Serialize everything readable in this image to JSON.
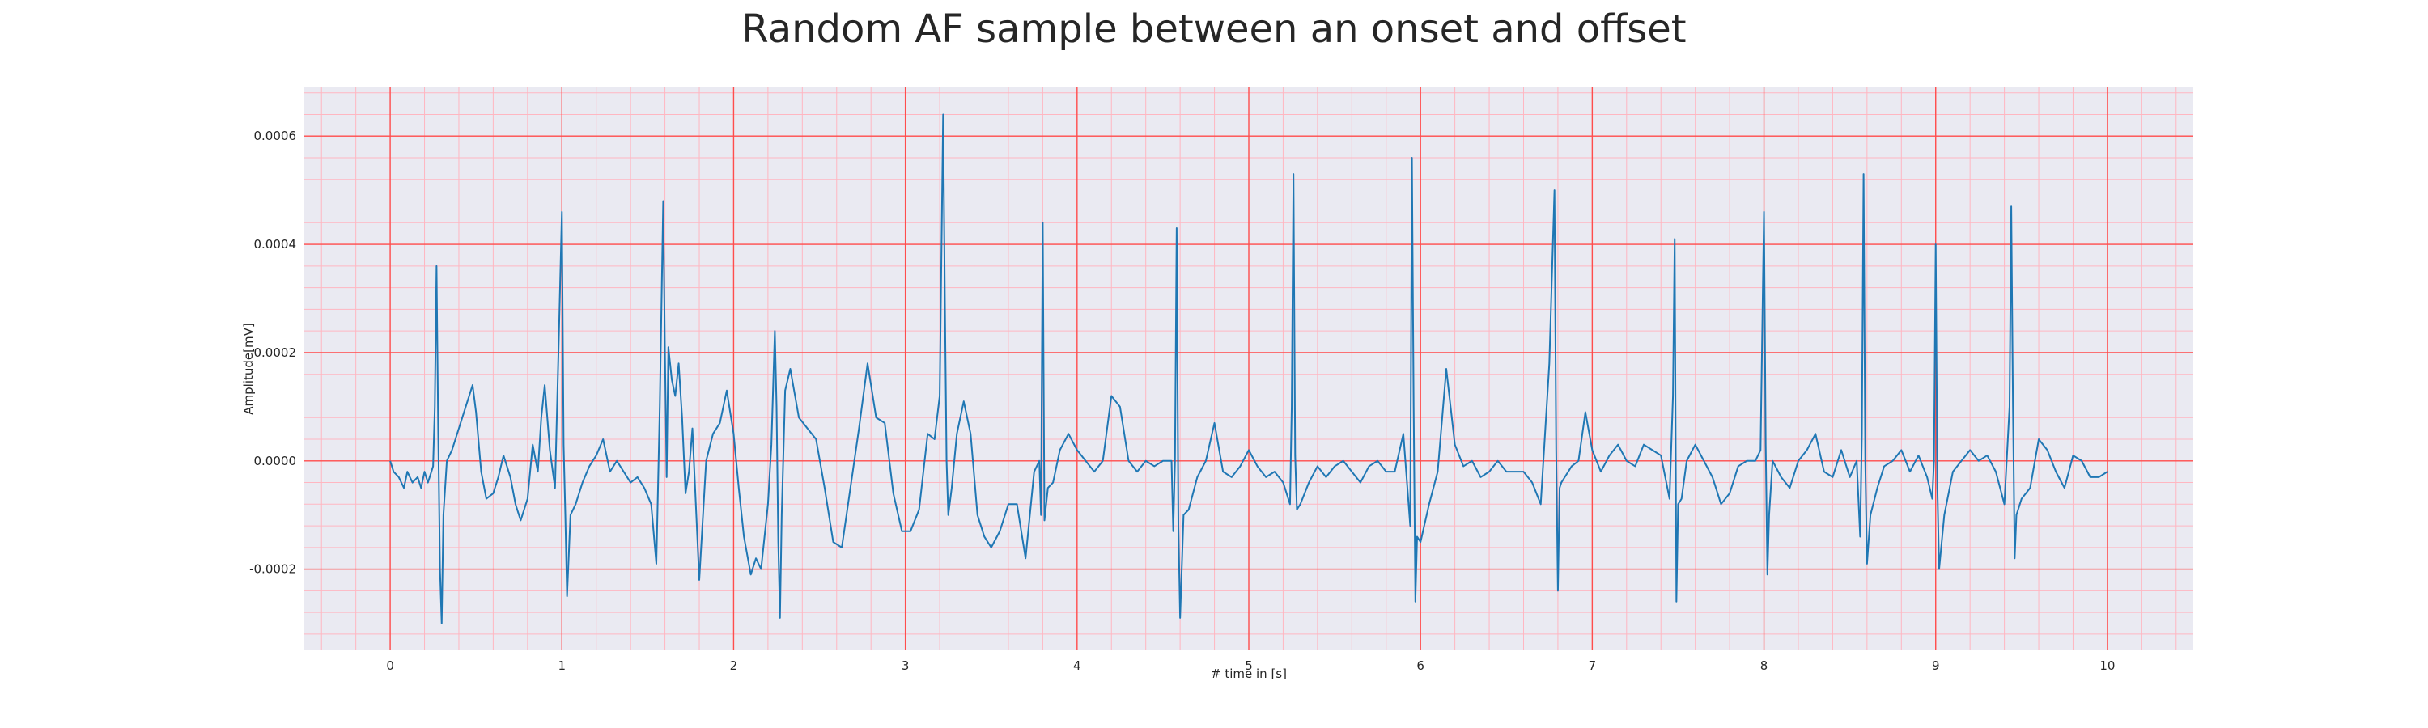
{
  "chart_data": {
    "type": "line",
    "title": "Random AF sample between an onset and offset",
    "xlabel": "# time in [s]",
    "ylabel": "Amplitude[mV]",
    "xlim": [
      -0.5,
      10.5
    ],
    "ylim": [
      -0.00035,
      0.00069
    ],
    "x_ticks": [
      0,
      1,
      2,
      3,
      4,
      5,
      6,
      7,
      8,
      9,
      10
    ],
    "x_tick_labels": [
      "0",
      "1",
      "2",
      "3",
      "4",
      "5",
      "6",
      "7",
      "8",
      "9",
      "10"
    ],
    "y_ticks": [
      -0.0002,
      0.0,
      0.0002,
      0.0004,
      0.0006
    ],
    "y_tick_labels": [
      "-0.0002",
      "0.0000",
      "0.0002",
      "0.0004",
      "0.0006"
    ],
    "grid": true,
    "major_grid_color": "#ff4d4d",
    "minor_grid_color": "#ffb6c1",
    "background_color": "#eaeaf2",
    "line_color": "#1f77b4",
    "series": [
      {
        "x": [
          0.0,
          0.02,
          0.05,
          0.08,
          0.1,
          0.13,
          0.16,
          0.18,
          0.2,
          0.22,
          0.25,
          0.26,
          0.27,
          0.28,
          0.29,
          0.3,
          0.31,
          0.33,
          0.36,
          0.4,
          0.44,
          0.48,
          0.5,
          0.53,
          0.56,
          0.6,
          0.63,
          0.66,
          0.7,
          0.73,
          0.76,
          0.8,
          0.83,
          0.86,
          0.88,
          0.9,
          0.93,
          0.96,
          0.98,
          1.0,
          1.01,
          1.02,
          1.03,
          1.05,
          1.08,
          1.12,
          1.16,
          1.2,
          1.24,
          1.28,
          1.32,
          1.36,
          1.4,
          1.44,
          1.48,
          1.52,
          1.55,
          1.57,
          1.59,
          1.6,
          1.61,
          1.62,
          1.63,
          1.64,
          1.66,
          1.68,
          1.7,
          1.72,
          1.74,
          1.76,
          1.8,
          1.84,
          1.88,
          1.92,
          1.96,
          2.0,
          2.03,
          2.06,
          2.1,
          2.13,
          2.16,
          2.2,
          2.22,
          2.24,
          2.25,
          2.26,
          2.27,
          2.28,
          2.3,
          2.33,
          2.38,
          2.43,
          2.48,
          2.53,
          2.58,
          2.63,
          2.68,
          2.73,
          2.78,
          2.83,
          2.88,
          2.93,
          2.98,
          3.03,
          3.08,
          3.13,
          3.17,
          3.2,
          3.22,
          3.23,
          3.24,
          3.25,
          3.27,
          3.3,
          3.34,
          3.38,
          3.42,
          3.46,
          3.5,
          3.55,
          3.6,
          3.65,
          3.7,
          3.75,
          3.78,
          3.79,
          3.8,
          3.81,
          3.83,
          3.86,
          3.9,
          3.95,
          4.0,
          4.05,
          4.1,
          4.15,
          4.2,
          4.25,
          4.3,
          4.35,
          4.4,
          4.45,
          4.5,
          4.55,
          4.56,
          4.57,
          4.58,
          4.59,
          4.6,
          4.62,
          4.65,
          4.7,
          4.75,
          4.8,
          4.85,
          4.9,
          4.95,
          5.0,
          5.05,
          5.1,
          5.15,
          5.2,
          5.24,
          5.25,
          5.26,
          5.27,
          5.28,
          5.3,
          5.35,
          5.4,
          5.45,
          5.5,
          5.55,
          5.6,
          5.65,
          5.7,
          5.75,
          5.8,
          5.85,
          5.9,
          5.94,
          5.95,
          5.96,
          5.97,
          5.98,
          6.0,
          6.05,
          6.1,
          6.15,
          6.2,
          6.25,
          6.3,
          6.35,
          6.4,
          6.45,
          6.5,
          6.55,
          6.6,
          6.65,
          6.7,
          6.75,
          6.78,
          6.79,
          6.8,
          6.81,
          6.82,
          6.84,
          6.88,
          6.92,
          6.96,
          7.0,
          7.05,
          7.1,
          7.15,
          7.2,
          7.25,
          7.3,
          7.35,
          7.4,
          7.45,
          7.47,
          7.48,
          7.49,
          7.5,
          7.52,
          7.55,
          7.6,
          7.65,
          7.7,
          7.75,
          7.8,
          7.85,
          7.9,
          7.95,
          7.98,
          8.0,
          8.01,
          8.02,
          8.03,
          8.05,
          8.1,
          8.15,
          8.2,
          8.25,
          8.3,
          8.35,
          8.4,
          8.45,
          8.5,
          8.54,
          8.56,
          8.57,
          8.58,
          8.59,
          8.6,
          8.62,
          8.66,
          8.7,
          8.75,
          8.8,
          8.85,
          8.9,
          8.95,
          8.98,
          8.99,
          9.0,
          9.01,
          9.02,
          9.05,
          9.1,
          9.15,
          9.2,
          9.25,
          9.3,
          9.35,
          9.4,
          9.43,
          9.44,
          9.45,
          9.46,
          9.47,
          9.5,
          9.55,
          9.6,
          9.65,
          9.7,
          9.75,
          9.8,
          9.85,
          9.9,
          9.95,
          10.0
        ],
        "y": [
          0.0,
          -2e-05,
          -3e-05,
          -5e-05,
          -2e-05,
          -4e-05,
          -3e-05,
          -5e-05,
          -2e-05,
          -4e-05,
          -1e-05,
          0.0001,
          0.00036,
          5e-05,
          -0.0002,
          -0.0003,
          -0.0001,
          0.0,
          2e-05,
          6e-05,
          0.0001,
          0.00014,
          9e-05,
          -2e-05,
          -7e-05,
          -6e-05,
          -3e-05,
          1e-05,
          -3e-05,
          -8e-05,
          -0.00011,
          -7e-05,
          3e-05,
          -2e-05,
          8e-05,
          0.00014,
          2e-05,
          -5e-05,
          0.0002,
          0.00046,
          3e-05,
          -0.0001,
          -0.00025,
          -0.0001,
          -8e-05,
          -4e-05,
          -1e-05,
          1e-05,
          4e-05,
          -2e-05,
          0.0,
          -2e-05,
          -4e-05,
          -3e-05,
          -5e-05,
          -8e-05,
          -0.00019,
          0.0001,
          0.00048,
          0.0002,
          -3e-05,
          0.00021,
          0.00018,
          0.00015,
          0.00012,
          0.00018,
          8e-05,
          -6e-05,
          -2e-05,
          6e-05,
          -0.00022,
          0.0,
          5e-05,
          7e-05,
          0.00013,
          5e-05,
          -5e-05,
          -0.00014,
          -0.00021,
          -0.00018,
          -0.0002,
          -8e-05,
          3e-05,
          0.00024,
          0.0001,
          -0.00015,
          -0.00029,
          -0.0001,
          0.00013,
          0.00017,
          8e-05,
          6e-05,
          4e-05,
          -5e-05,
          -0.00015,
          -0.00016,
          -5e-05,
          6e-05,
          0.00018,
          8e-05,
          7e-05,
          -6e-05,
          -0.00013,
          -0.00013,
          -9e-05,
          5e-05,
          4e-05,
          0.00012,
          0.00064,
          0.0003,
          0.0,
          -0.0001,
          -5e-05,
          5e-05,
          0.00011,
          5e-05,
          -0.0001,
          -0.00014,
          -0.00016,
          -0.00013,
          -8e-05,
          -8e-05,
          -0.00018,
          -2e-05,
          0.0,
          -0.0001,
          0.00044,
          -0.00011,
          -5e-05,
          -4e-05,
          2e-05,
          5e-05,
          2e-05,
          0.0,
          -2e-05,
          0.0,
          0.00012,
          0.0001,
          0.0,
          -2e-05,
          0.0,
          -1e-05,
          0.0,
          0.0,
          -0.00013,
          0.0,
          0.00043,
          -0.00012,
          -0.00029,
          -0.0001,
          -9e-05,
          -3e-05,
          0.0,
          7e-05,
          -2e-05,
          -3e-05,
          -1e-05,
          2e-05,
          -1e-05,
          -3e-05,
          -2e-05,
          -4e-05,
          -8e-05,
          0.0001,
          0.00053,
          1e-05,
          -9e-05,
          -8e-05,
          -4e-05,
          -1e-05,
          -3e-05,
          -1e-05,
          0.0,
          -2e-05,
          -4e-05,
          -1e-05,
          0.0,
          -2e-05,
          -2e-05,
          5e-05,
          -0.00012,
          0.00056,
          0.0001,
          -0.00026,
          -0.00014,
          -0.00015,
          -8e-05,
          -2e-05,
          0.00017,
          3e-05,
          -1e-05,
          0.0,
          -3e-05,
          -2e-05,
          0.0,
          -2e-05,
          -2e-05,
          -2e-05,
          -4e-05,
          -8e-05,
          0.00018,
          0.0005,
          2e-05,
          -0.00024,
          -5e-05,
          -4e-05,
          -3e-05,
          -1e-05,
          0.0,
          9e-05,
          2e-05,
          -2e-05,
          1e-05,
          3e-05,
          0.0,
          -1e-05,
          3e-05,
          2e-05,
          1e-05,
          -7e-05,
          0.00012,
          0.00041,
          -0.00026,
          -8e-05,
          -7e-05,
          0.0,
          3e-05,
          0.0,
          -3e-05,
          -8e-05,
          -6e-05,
          -1e-05,
          0.0,
          0.0,
          2e-05,
          0.00046,
          3e-05,
          -0.00021,
          -0.0001,
          0.0,
          -3e-05,
          -5e-05,
          0.0,
          2e-05,
          5e-05,
          -2e-05,
          -3e-05,
          2e-05,
          -3e-05,
          0.0,
          -0.00014,
          5e-05,
          0.00053,
          0.0,
          -0.00019,
          -0.0001,
          -5e-05,
          -1e-05,
          0.0,
          2e-05,
          -2e-05,
          1e-05,
          -3e-05,
          -7e-05,
          0.0,
          0.0004,
          -5e-05,
          -0.0002,
          -0.0001,
          -2e-05,
          0.0,
          2e-05,
          0.0,
          1e-05,
          -2e-05,
          -8e-05,
          0.0001,
          0.00047,
          0.0001,
          -0.00018,
          -0.0001,
          -7e-05,
          -5e-05,
          4e-05,
          2e-05,
          -2e-05,
          -5e-05,
          1e-05,
          0.0,
          -3e-05,
          -3e-05,
          -2e-05
        ]
      }
    ]
  }
}
